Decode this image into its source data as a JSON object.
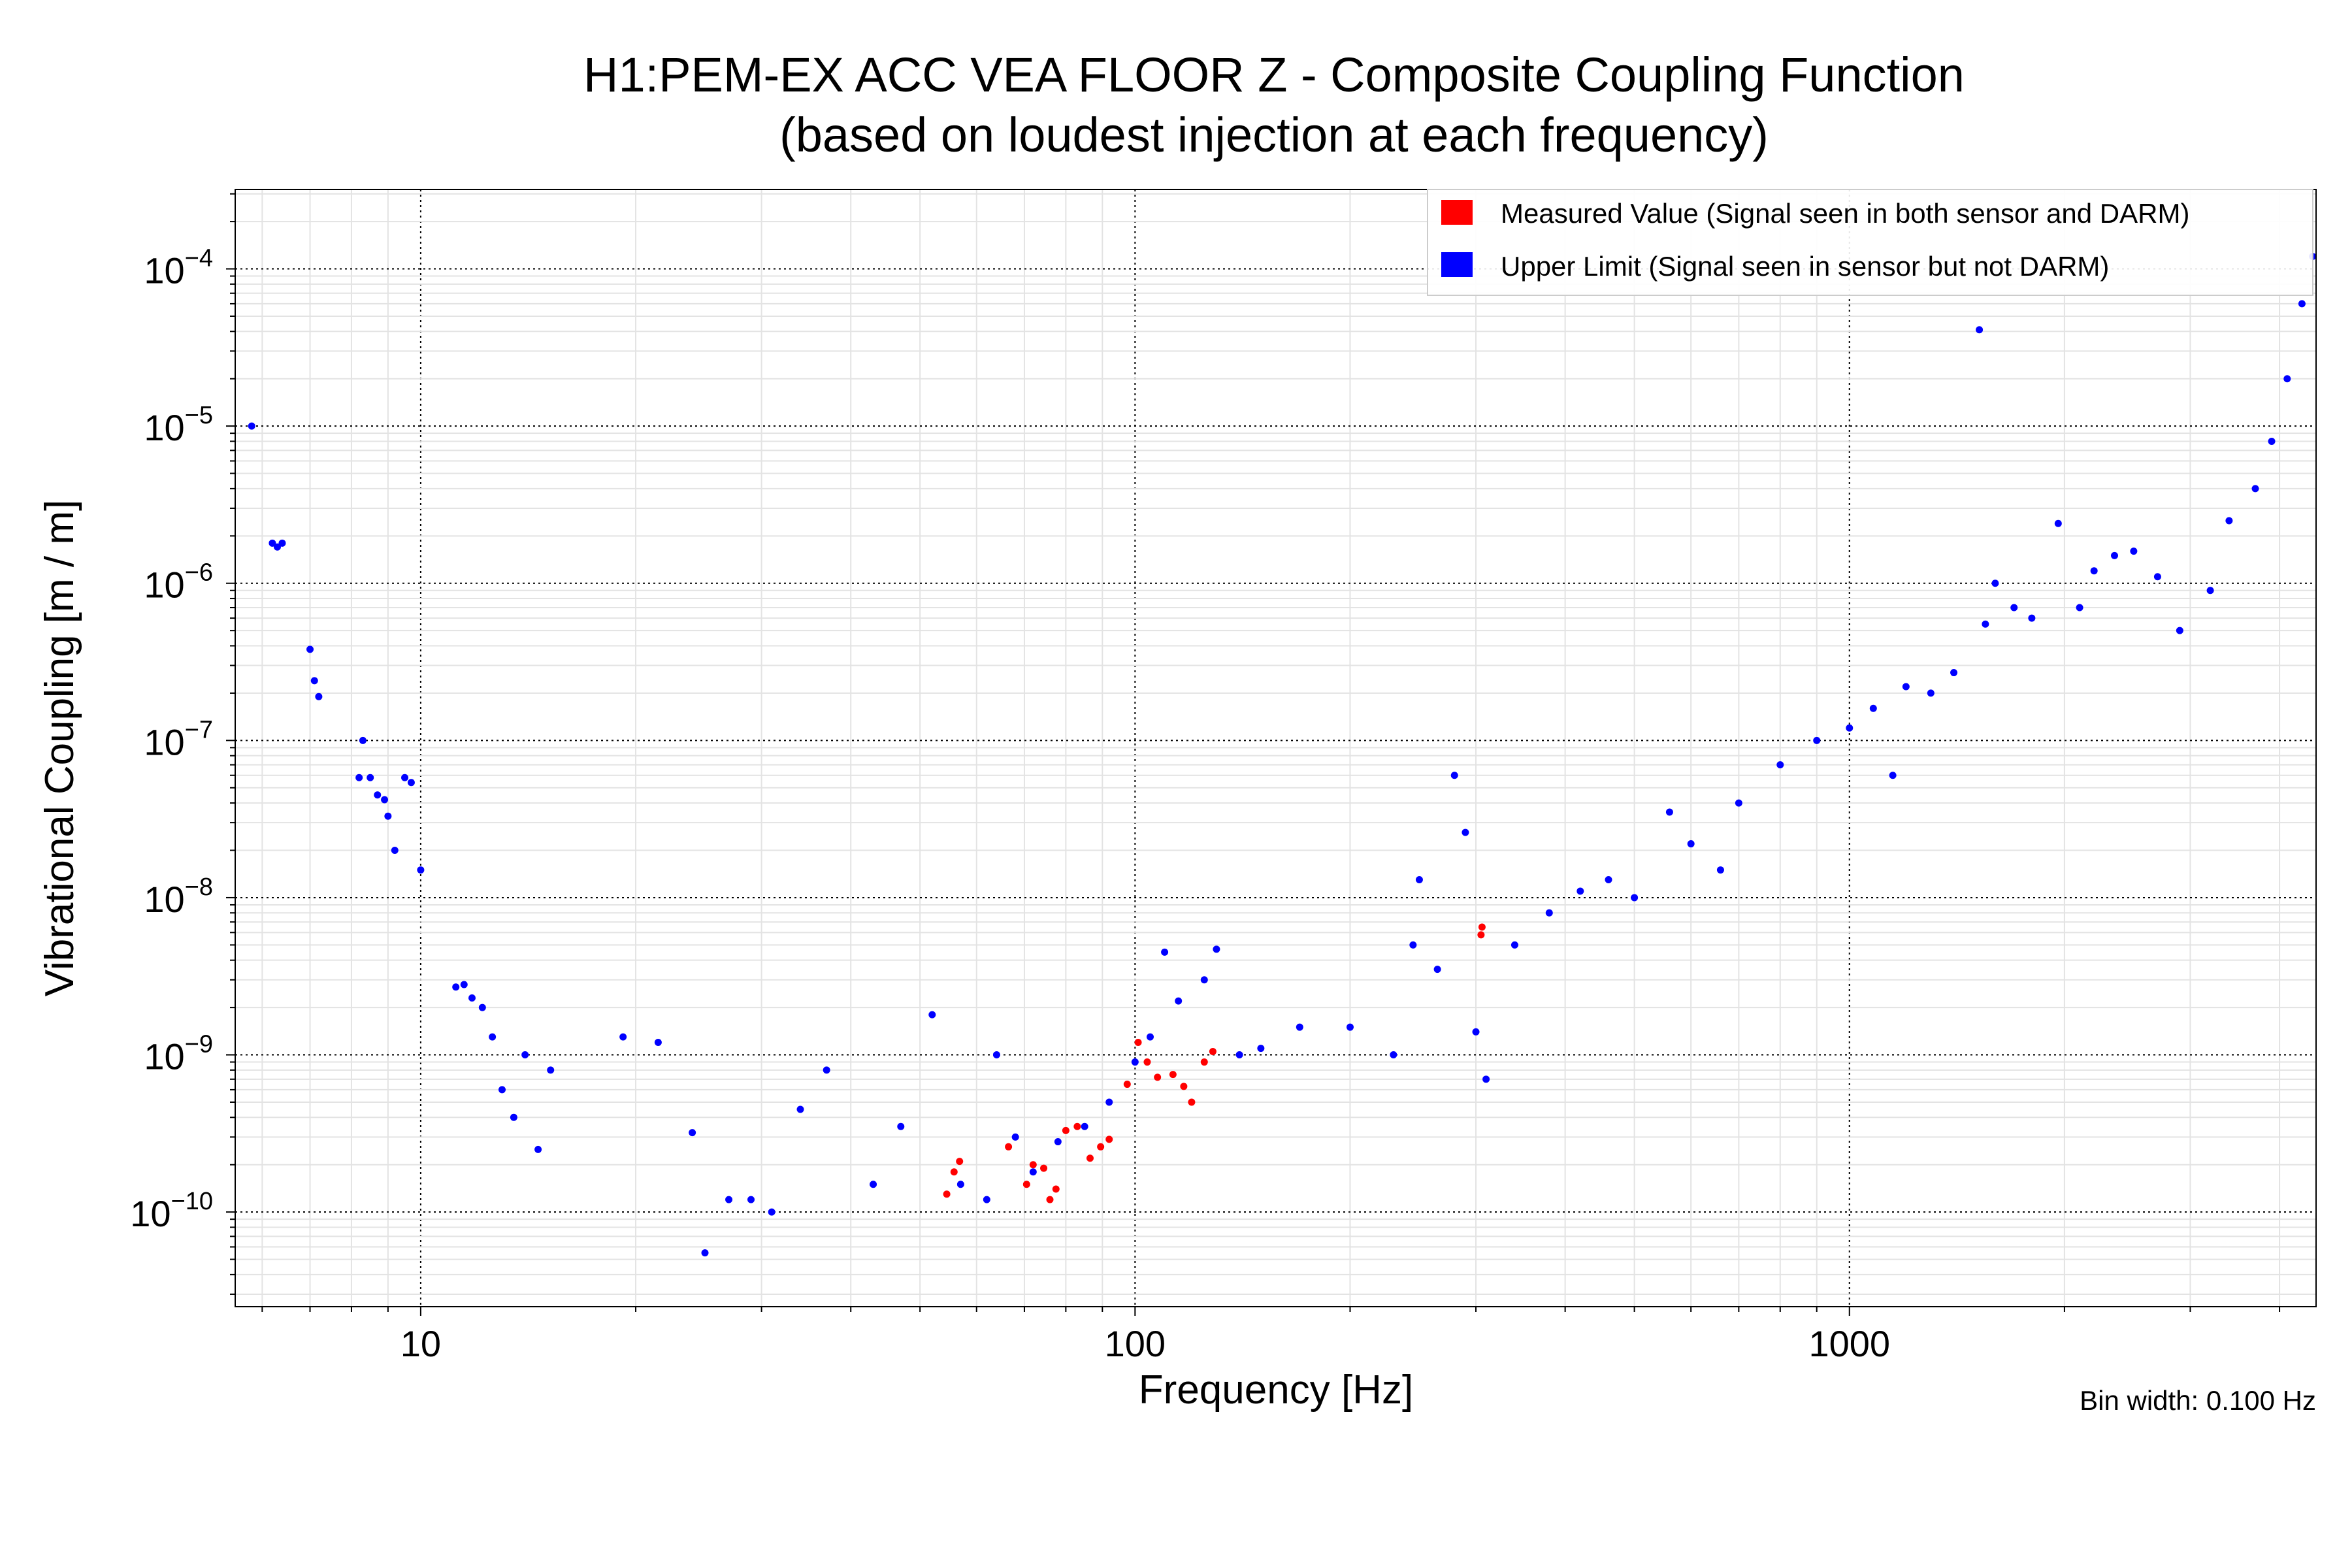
{
  "chart_data": {
    "type": "scatter",
    "title_line1": "H1:PEM-EX ACC VEA FLOOR Z - Composite Coupling Function",
    "title_line2": "(based on loudest injection at each frequency)",
    "xlabel": "Frequency [Hz]",
    "ylabel": "Vibrational Coupling [m / m]",
    "xscale": "log",
    "yscale": "log",
    "xlim": [
      5.5,
      4500
    ],
    "ylim": [
      2.5e-11,
      0.00032
    ],
    "x_ticks": [
      {
        "value": 10,
        "label": "10"
      },
      {
        "value": 100,
        "label": "100"
      },
      {
        "value": 1000,
        "label": "1000"
      }
    ],
    "y_ticks": [
      {
        "value": 1e-10,
        "base": "10",
        "exp": "−10"
      },
      {
        "value": 1e-09,
        "base": "10",
        "exp": "−9"
      },
      {
        "value": 1e-08,
        "base": "10",
        "exp": "−8"
      },
      {
        "value": 1e-07,
        "base": "10",
        "exp": "−7"
      },
      {
        "value": 1e-06,
        "base": "10",
        "exp": "−6"
      },
      {
        "value": 1e-05,
        "base": "10",
        "exp": "−5"
      },
      {
        "value": 0.0001,
        "base": "10",
        "exp": "−4"
      }
    ],
    "grid": true,
    "legend_position": "top-right",
    "colors": {
      "measured": "#ff0000",
      "upper": "#0000ff"
    },
    "series": [
      {
        "name": "Measured Value (Signal seen in both sensor and DARM)",
        "color": "#ff0000",
        "points": [
          [
            54.5,
            1.3e-10
          ],
          [
            55.8,
            1.8e-10
          ],
          [
            56.8,
            2.1e-10
          ],
          [
            66.5,
            2.6e-10
          ],
          [
            70.5,
            1.5e-10
          ],
          [
            72,
            2e-10
          ],
          [
            74.5,
            1.9e-10
          ],
          [
            76,
            1.2e-10
          ],
          [
            77.5,
            1.4e-10
          ],
          [
            80,
            3.3e-10
          ],
          [
            83,
            3.5e-10
          ],
          [
            86.5,
            2.2e-10
          ],
          [
            89.5,
            2.6e-10
          ],
          [
            92,
            2.9e-10
          ],
          [
            97.5,
            6.5e-10
          ],
          [
            101,
            1.2e-09
          ],
          [
            104,
            9e-10
          ],
          [
            107.5,
            7.2e-10
          ],
          [
            113,
            7.5e-10
          ],
          [
            117,
            6.3e-10
          ],
          [
            120,
            5e-10
          ],
          [
            125,
            9e-10
          ],
          [
            128.5,
            1.05e-09
          ],
          [
            305,
            5.8e-09
          ],
          [
            306,
            6.5e-09
          ]
        ]
      },
      {
        "name": "Upper Limit (Signal seen in sensor but not DARM)",
        "color": "#0000ff",
        "points": [
          [
            5.8,
            1e-05
          ],
          [
            6.2,
            1.8e-06
          ],
          [
            6.3,
            1.7e-06
          ],
          [
            6.4,
            1.8e-06
          ],
          [
            7.0,
            3.8e-07
          ],
          [
            7.1,
            2.4e-07
          ],
          [
            7.2,
            1.9e-07
          ],
          [
            8.2,
            5.8e-08
          ],
          [
            8.3,
            1e-07
          ],
          [
            8.5,
            5.8e-08
          ],
          [
            8.7,
            4.5e-08
          ],
          [
            8.9,
            4.2e-08
          ],
          [
            9.0,
            3.3e-08
          ],
          [
            9.2,
            2e-08
          ],
          [
            9.5,
            5.8e-08
          ],
          [
            9.7,
            5.4e-08
          ],
          [
            10.0,
            1.5e-08
          ],
          [
            11.2,
            2.7e-09
          ],
          [
            11.5,
            2.8e-09
          ],
          [
            11.8,
            2.3e-09
          ],
          [
            12.2,
            2e-09
          ],
          [
            12.6,
            1.3e-09
          ],
          [
            13.0,
            6e-10
          ],
          [
            13.5,
            4e-10
          ],
          [
            14.0,
            1e-09
          ],
          [
            14.6,
            2.5e-10
          ],
          [
            15.2,
            8e-10
          ],
          [
            19.2,
            1.3e-09
          ],
          [
            21.5,
            1.2e-09
          ],
          [
            24,
            3.2e-10
          ],
          [
            25,
            5.5e-11
          ],
          [
            27,
            1.2e-10
          ],
          [
            29,
            1.2e-10
          ],
          [
            31,
            1e-10
          ],
          [
            34,
            4.5e-10
          ],
          [
            37,
            8e-10
          ],
          [
            43,
            1.5e-10
          ],
          [
            47,
            3.5e-10
          ],
          [
            52,
            1.8e-09
          ],
          [
            57,
            1.5e-10
          ],
          [
            62,
            1.2e-10
          ],
          [
            64,
            1e-09
          ],
          [
            68,
            3e-10
          ],
          [
            72,
            1.8e-10
          ],
          [
            78,
            2.8e-10
          ],
          [
            85,
            3.5e-10
          ],
          [
            92,
            5e-10
          ],
          [
            100,
            9e-10
          ],
          [
            105,
            1.3e-09
          ],
          [
            110,
            4.5e-09
          ],
          [
            115,
            2.2e-09
          ],
          [
            125,
            3e-09
          ],
          [
            130,
            4.7e-09
          ],
          [
            140,
            1e-09
          ],
          [
            150,
            1.1e-09
          ],
          [
            170,
            1.5e-09
          ],
          [
            200,
            1.5e-09
          ],
          [
            230,
            1e-09
          ],
          [
            245,
            5e-09
          ],
          [
            250,
            1.3e-08
          ],
          [
            265,
            3.5e-09
          ],
          [
            280,
            6e-08
          ],
          [
            290,
            2.6e-08
          ],
          [
            300,
            1.4e-09
          ],
          [
            310,
            7e-10
          ],
          [
            340,
            5e-09
          ],
          [
            380,
            8e-09
          ],
          [
            420,
            1.1e-08
          ],
          [
            460,
            1.3e-08
          ],
          [
            500,
            1e-08
          ],
          [
            560,
            3.5e-08
          ],
          [
            600,
            2.2e-08
          ],
          [
            660,
            1.5e-08
          ],
          [
            700,
            4e-08
          ],
          [
            800,
            7e-08
          ],
          [
            900,
            1e-07
          ],
          [
            1000,
            1.2e-07
          ],
          [
            1080,
            1.6e-07
          ],
          [
            1150,
            6e-08
          ],
          [
            1200,
            2.2e-07
          ],
          [
            1300,
            2e-07
          ],
          [
            1400,
            2.7e-07
          ],
          [
            1520,
            4.1e-05
          ],
          [
            1550,
            5.5e-07
          ],
          [
            1600,
            1e-06
          ],
          [
            1700,
            7e-07
          ],
          [
            1800,
            6e-07
          ],
          [
            1960,
            2.4e-06
          ],
          [
            2100,
            7e-07
          ],
          [
            2200,
            1.2e-06
          ],
          [
            2350,
            1.5e-06
          ],
          [
            2500,
            1.6e-06
          ],
          [
            2700,
            1.1e-06
          ],
          [
            2900,
            5e-07
          ],
          [
            3200,
            9e-07
          ],
          [
            3400,
            2.5e-06
          ],
          [
            3700,
            4e-06
          ],
          [
            3900,
            8e-06
          ],
          [
            4100,
            2e-05
          ],
          [
            4300,
            6e-05
          ],
          [
            4450,
            0.00012
          ]
        ]
      }
    ],
    "bin_width_label": "Bin width: 0.100 Hz"
  }
}
